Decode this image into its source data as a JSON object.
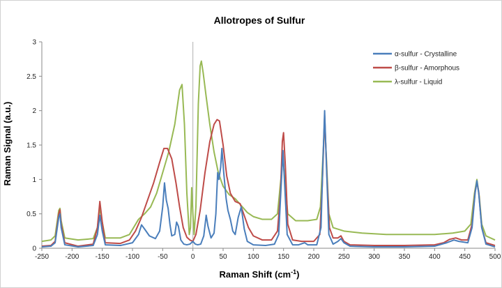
{
  "chart_data": {
    "type": "line",
    "title": "Allotropes of Sulfur",
    "xlabel": "Raman Shift (cm",
    "xlabel_sup": "-1",
    "xlabel_end": ")",
    "ylabel": "Raman Signal (a.u.)",
    "xlim": [
      -250,
      500
    ],
    "ylim": [
      0,
      3
    ],
    "xticks": [
      -250,
      -200,
      -150,
      -100,
      -50,
      0,
      50,
      100,
      150,
      200,
      250,
      300,
      350,
      400,
      450,
      500
    ],
    "xtick_labels": [
      "-250",
      "-200",
      "-150",
      "-100",
      "-50",
      "0",
      "50",
      "100",
      "150",
      "200",
      "250",
      "300",
      "350",
      "400",
      "450",
      "500"
    ],
    "yticks": [
      0,
      0.5,
      1,
      1.5,
      2,
      2.5,
      3
    ],
    "ytick_labels": [
      "0",
      "0.5",
      "1",
      "1.5",
      "2",
      "2.5",
      "3"
    ],
    "grid": false,
    "legend_position": "top-right",
    "reference_line_x": 0,
    "series": [
      {
        "name": "α-sulfur - Crystalline",
        "color": "#4a7ebb",
        "points": [
          [
            -250,
            0.02
          ],
          [
            -235,
            0.03
          ],
          [
            -228,
            0.08
          ],
          [
            -222,
            0.45
          ],
          [
            -220,
            0.5
          ],
          [
            -218,
            0.3
          ],
          [
            -212,
            0.05
          ],
          [
            -190,
            0.02
          ],
          [
            -165,
            0.04
          ],
          [
            -158,
            0.2
          ],
          [
            -154,
            0.48
          ],
          [
            -150,
            0.25
          ],
          [
            -145,
            0.05
          ],
          [
            -120,
            0.04
          ],
          [
            -100,
            0.08
          ],
          [
            -90,
            0.2
          ],
          [
            -85,
            0.34
          ],
          [
            -80,
            0.28
          ],
          [
            -72,
            0.18
          ],
          [
            -62,
            0.14
          ],
          [
            -55,
            0.25
          ],
          [
            -50,
            0.6
          ],
          [
            -47,
            0.95
          ],
          [
            -44,
            0.7
          ],
          [
            -41,
            0.58
          ],
          [
            -38,
            0.35
          ],
          [
            -35,
            0.18
          ],
          [
            -30,
            0.2
          ],
          [
            -27,
            0.38
          ],
          [
            -24,
            0.32
          ],
          [
            -20,
            0.12
          ],
          [
            -15,
            0.06
          ],
          [
            -10,
            0.05
          ],
          [
            -5,
            0.06
          ],
          [
            0,
            0.1
          ],
          [
            4,
            0.06
          ],
          [
            8,
            0.05
          ],
          [
            13,
            0.06
          ],
          [
            18,
            0.18
          ],
          [
            22,
            0.48
          ],
          [
            25,
            0.32
          ],
          [
            30,
            0.15
          ],
          [
            35,
            0.22
          ],
          [
            38,
            0.5
          ],
          [
            41,
            1.1
          ],
          [
            43,
            1.0
          ],
          [
            46,
            1.18
          ],
          [
            48,
            1.45
          ],
          [
            51,
            1.1
          ],
          [
            55,
            0.72
          ],
          [
            58,
            0.55
          ],
          [
            62,
            0.42
          ],
          [
            66,
            0.25
          ],
          [
            70,
            0.2
          ],
          [
            75,
            0.45
          ],
          [
            80,
            0.6
          ],
          [
            85,
            0.28
          ],
          [
            90,
            0.1
          ],
          [
            100,
            0.05
          ],
          [
            120,
            0.04
          ],
          [
            135,
            0.06
          ],
          [
            142,
            0.2
          ],
          [
            146,
            0.9
          ],
          [
            149,
            1.42
          ],
          [
            152,
            0.9
          ],
          [
            156,
            0.2
          ],
          [
            165,
            0.05
          ],
          [
            175,
            0.05
          ],
          [
            185,
            0.08
          ],
          [
            190,
            0.05
          ],
          [
            205,
            0.05
          ],
          [
            212,
            0.3
          ],
          [
            215,
            1.2
          ],
          [
            218,
            2.0
          ],
          [
            221,
            1.2
          ],
          [
            225,
            0.2
          ],
          [
            232,
            0.06
          ],
          [
            240,
            0.1
          ],
          [
            245,
            0.14
          ],
          [
            250,
            0.08
          ],
          [
            260,
            0.03
          ],
          [
            300,
            0.02
          ],
          [
            350,
            0.02
          ],
          [
            400,
            0.03
          ],
          [
            420,
            0.08
          ],
          [
            432,
            0.12
          ],
          [
            440,
            0.1
          ],
          [
            455,
            0.08
          ],
          [
            462,
            0.3
          ],
          [
            467,
            0.8
          ],
          [
            470,
            0.98
          ],
          [
            473,
            0.8
          ],
          [
            478,
            0.3
          ],
          [
            485,
            0.06
          ],
          [
            500,
            0.02
          ]
        ]
      },
      {
        "name": "β-sulfur - Amorphous",
        "color": "#be4b48",
        "points": [
          [
            -250,
            0.03
          ],
          [
            -235,
            0.04
          ],
          [
            -228,
            0.1
          ],
          [
            -222,
            0.5
          ],
          [
            -220,
            0.56
          ],
          [
            -218,
            0.35
          ],
          [
            -212,
            0.08
          ],
          [
            -190,
            0.03
          ],
          [
            -165,
            0.06
          ],
          [
            -158,
            0.3
          ],
          [
            -154,
            0.68
          ],
          [
            -150,
            0.38
          ],
          [
            -145,
            0.08
          ],
          [
            -120,
            0.07
          ],
          [
            -105,
            0.12
          ],
          [
            -95,
            0.25
          ],
          [
            -85,
            0.45
          ],
          [
            -75,
            0.7
          ],
          [
            -65,
            0.95
          ],
          [
            -55,
            1.25
          ],
          [
            -48,
            1.45
          ],
          [
            -42,
            1.45
          ],
          [
            -35,
            1.3
          ],
          [
            -28,
            0.95
          ],
          [
            -22,
            0.6
          ],
          [
            -16,
            0.3
          ],
          [
            -10,
            0.16
          ],
          [
            -5,
            0.12
          ],
          [
            0,
            0.1
          ],
          [
            5,
            0.2
          ],
          [
            12,
            0.55
          ],
          [
            20,
            1.1
          ],
          [
            28,
            1.55
          ],
          [
            35,
            1.8
          ],
          [
            40,
            1.87
          ],
          [
            44,
            1.85
          ],
          [
            50,
            1.5
          ],
          [
            56,
            1.05
          ],
          [
            62,
            0.8
          ],
          [
            70,
            0.68
          ],
          [
            78,
            0.65
          ],
          [
            84,
            0.5
          ],
          [
            92,
            0.3
          ],
          [
            100,
            0.18
          ],
          [
            115,
            0.12
          ],
          [
            130,
            0.12
          ],
          [
            140,
            0.25
          ],
          [
            145,
            0.8
          ],
          [
            148,
            1.55
          ],
          [
            150,
            1.68
          ],
          [
            153,
            1.2
          ],
          [
            157,
            0.35
          ],
          [
            165,
            0.12
          ],
          [
            180,
            0.1
          ],
          [
            200,
            0.1
          ],
          [
            210,
            0.2
          ],
          [
            214,
            0.9
          ],
          [
            218,
            1.93
          ],
          [
            222,
            1.0
          ],
          [
            226,
            0.3
          ],
          [
            232,
            0.15
          ],
          [
            240,
            0.15
          ],
          [
            245,
            0.18
          ],
          [
            250,
            0.1
          ],
          [
            260,
            0.05
          ],
          [
            300,
            0.04
          ],
          [
            350,
            0.04
          ],
          [
            400,
            0.05
          ],
          [
            415,
            0.08
          ],
          [
            425,
            0.13
          ],
          [
            435,
            0.15
          ],
          [
            445,
            0.12
          ],
          [
            455,
            0.12
          ],
          [
            462,
            0.35
          ],
          [
            467,
            0.82
          ],
          [
            470,
            0.96
          ],
          [
            473,
            0.82
          ],
          [
            478,
            0.3
          ],
          [
            485,
            0.08
          ],
          [
            500,
            0.04
          ]
        ]
      },
      {
        "name": "λ-sulfur - Liquid",
        "color": "#98b954",
        "points": [
          [
            -250,
            0.1
          ],
          [
            -235,
            0.12
          ],
          [
            -228,
            0.18
          ],
          [
            -222,
            0.55
          ],
          [
            -220,
            0.58
          ],
          [
            -218,
            0.4
          ],
          [
            -212,
            0.15
          ],
          [
            -190,
            0.12
          ],
          [
            -165,
            0.14
          ],
          [
            -158,
            0.3
          ],
          [
            -154,
            0.58
          ],
          [
            -150,
            0.38
          ],
          [
            -145,
            0.15
          ],
          [
            -120,
            0.15
          ],
          [
            -105,
            0.2
          ],
          [
            -90,
            0.42
          ],
          [
            -80,
            0.5
          ],
          [
            -70,
            0.6
          ],
          [
            -60,
            0.8
          ],
          [
            -50,
            1.1
          ],
          [
            -40,
            1.4
          ],
          [
            -30,
            1.8
          ],
          [
            -22,
            2.3
          ],
          [
            -18,
            2.38
          ],
          [
            -14,
            1.8
          ],
          [
            -10,
            0.8
          ],
          [
            -6,
            0.2
          ],
          [
            -4,
            0.3
          ],
          [
            -2,
            0.88
          ],
          [
            0,
            0.5
          ],
          [
            2,
            0.2
          ],
          [
            5,
            0.6
          ],
          [
            9,
            2.1
          ],
          [
            12,
            2.65
          ],
          [
            14,
            2.72
          ],
          [
            17,
            2.55
          ],
          [
            22,
            2.2
          ],
          [
            28,
            1.8
          ],
          [
            35,
            1.4
          ],
          [
            42,
            1.1
          ],
          [
            50,
            0.9
          ],
          [
            60,
            0.78
          ],
          [
            70,
            0.72
          ],
          [
            80,
            0.62
          ],
          [
            90,
            0.52
          ],
          [
            100,
            0.46
          ],
          [
            115,
            0.42
          ],
          [
            130,
            0.42
          ],
          [
            140,
            0.5
          ],
          [
            145,
            0.95
          ],
          [
            149,
            1.32
          ],
          [
            152,
            1.0
          ],
          [
            157,
            0.5
          ],
          [
            170,
            0.4
          ],
          [
            190,
            0.4
          ],
          [
            205,
            0.42
          ],
          [
            211,
            0.6
          ],
          [
            215,
            1.3
          ],
          [
            218,
            1.82
          ],
          [
            221,
            1.3
          ],
          [
            225,
            0.5
          ],
          [
            232,
            0.3
          ],
          [
            250,
            0.25
          ],
          [
            280,
            0.22
          ],
          [
            320,
            0.2
          ],
          [
            360,
            0.2
          ],
          [
            400,
            0.2
          ],
          [
            430,
            0.22
          ],
          [
            450,
            0.25
          ],
          [
            460,
            0.35
          ],
          [
            466,
            0.8
          ],
          [
            470,
            1.0
          ],
          [
            474,
            0.75
          ],
          [
            478,
            0.35
          ],
          [
            485,
            0.18
          ],
          [
            500,
            0.12
          ]
        ]
      }
    ]
  }
}
